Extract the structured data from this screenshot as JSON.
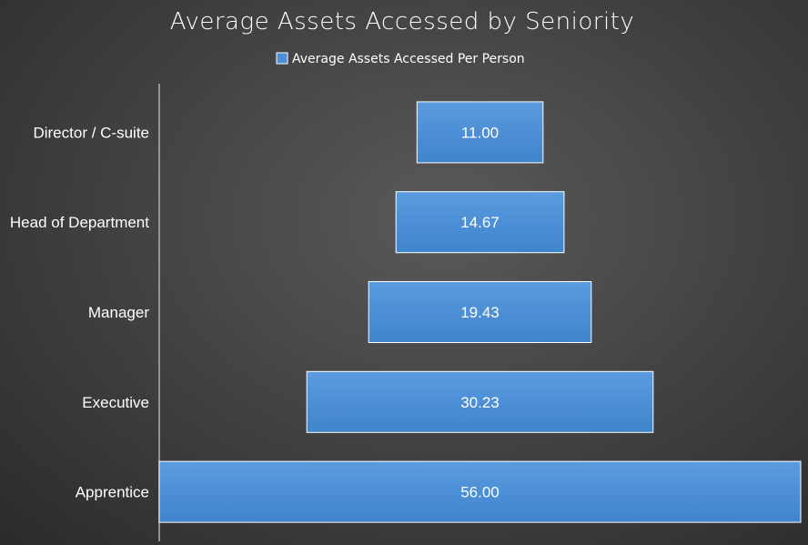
{
  "chart_data": {
    "type": "bar",
    "orientation": "horizontal",
    "style": "funnel-centered",
    "title": "Average Assets Accessed by Seniority",
    "legend": {
      "position": "top",
      "entries": [
        "Average Assets Accessed Per Person"
      ]
    },
    "categories": [
      "Director / C-suite",
      "Head of Department",
      "Manager",
      "Executive",
      "Apprentice"
    ],
    "series": [
      {
        "name": "Average Assets Accessed Per Person",
        "values": [
          11.0,
          14.67,
          19.43,
          30.23,
          56.0
        ],
        "labels": [
          "11.00",
          "14.67",
          "19.43",
          "30.23",
          "56.00"
        ],
        "color": "#4a8fd6"
      }
    ],
    "xlim": [
      0,
      56
    ],
    "grid": false
  }
}
